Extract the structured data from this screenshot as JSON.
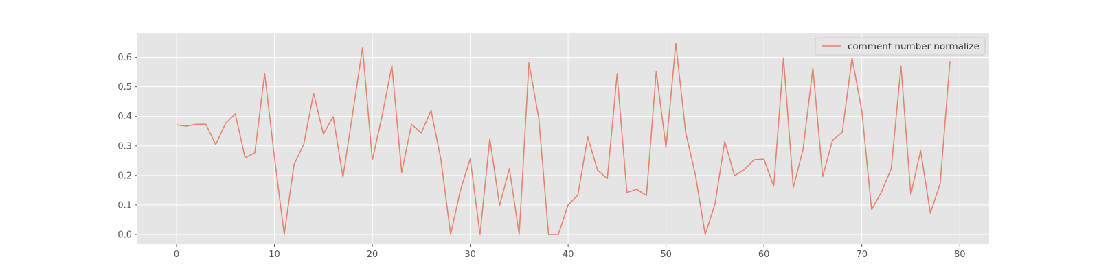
{
  "chart_data": {
    "type": "line",
    "title": "",
    "xlabel": "",
    "ylabel": "",
    "xlim": [
      -4,
      83
    ],
    "ylim": [
      -0.0325,
      0.6825
    ],
    "x_ticks": [
      0,
      10,
      20,
      30,
      40,
      50,
      60,
      70,
      80
    ],
    "x_tick_labels": [
      "0",
      "10",
      "20",
      "30",
      "40",
      "50",
      "60",
      "70",
      "80"
    ],
    "y_ticks": [
      0.0,
      0.1,
      0.2,
      0.3,
      0.4,
      0.5,
      0.6
    ],
    "y_tick_labels": [
      "0.0",
      "0.1",
      "0.2",
      "0.3",
      "0.4",
      "0.5",
      "0.6"
    ],
    "grid": true,
    "legend_position": "top-right",
    "colors": {
      "plot_background": "#e5e5e5",
      "grid": "#ffffff",
      "series": "#e5826b",
      "tick_label": "#555555",
      "legend_text": "#333333"
    },
    "series": [
      {
        "name": "comment number normalize",
        "x": [
          0,
          1,
          2,
          3,
          4,
          5,
          6,
          7,
          8,
          9,
          10,
          11,
          12,
          13,
          14,
          15,
          16,
          17,
          18,
          19,
          20,
          21,
          22,
          23,
          24,
          25,
          26,
          27,
          28,
          29,
          30,
          31,
          32,
          33,
          34,
          35,
          36,
          37,
          38,
          39,
          40,
          41,
          42,
          43,
          44,
          45,
          46,
          47,
          48,
          49,
          50,
          51,
          52,
          53,
          54,
          55,
          56,
          57,
          58,
          59,
          60,
          61,
          62,
          63,
          64,
          65,
          66,
          67,
          68,
          69,
          70,
          71,
          72,
          73,
          74,
          75,
          76,
          77,
          78,
          79
        ],
        "values": [
          0.371,
          0.367,
          0.373,
          0.373,
          0.304,
          0.376,
          0.409,
          0.26,
          0.277,
          0.545,
          0.262,
          0.0,
          0.237,
          0.306,
          0.478,
          0.34,
          0.399,
          0.194,
          0.412,
          0.632,
          0.252,
          0.402,
          0.572,
          0.21,
          0.373,
          0.344,
          0.42,
          0.255,
          0.0,
          0.15,
          0.256,
          0.0,
          0.325,
          0.098,
          0.223,
          0.0,
          0.581,
          0.394,
          0.0,
          0.0,
          0.1,
          0.134,
          0.33,
          0.218,
          0.189,
          0.543,
          0.142,
          0.153,
          0.132,
          0.552,
          0.294,
          0.646,
          0.347,
          0.202,
          0.0,
          0.103,
          0.315,
          0.199,
          0.22,
          0.253,
          0.255,
          0.163,
          0.598,
          0.159,
          0.289,
          0.564,
          0.196,
          0.319,
          0.346,
          0.598,
          0.418,
          0.084,
          0.144,
          0.222,
          0.57,
          0.135,
          0.284,
          0.072,
          0.173,
          0.587
        ]
      }
    ]
  }
}
